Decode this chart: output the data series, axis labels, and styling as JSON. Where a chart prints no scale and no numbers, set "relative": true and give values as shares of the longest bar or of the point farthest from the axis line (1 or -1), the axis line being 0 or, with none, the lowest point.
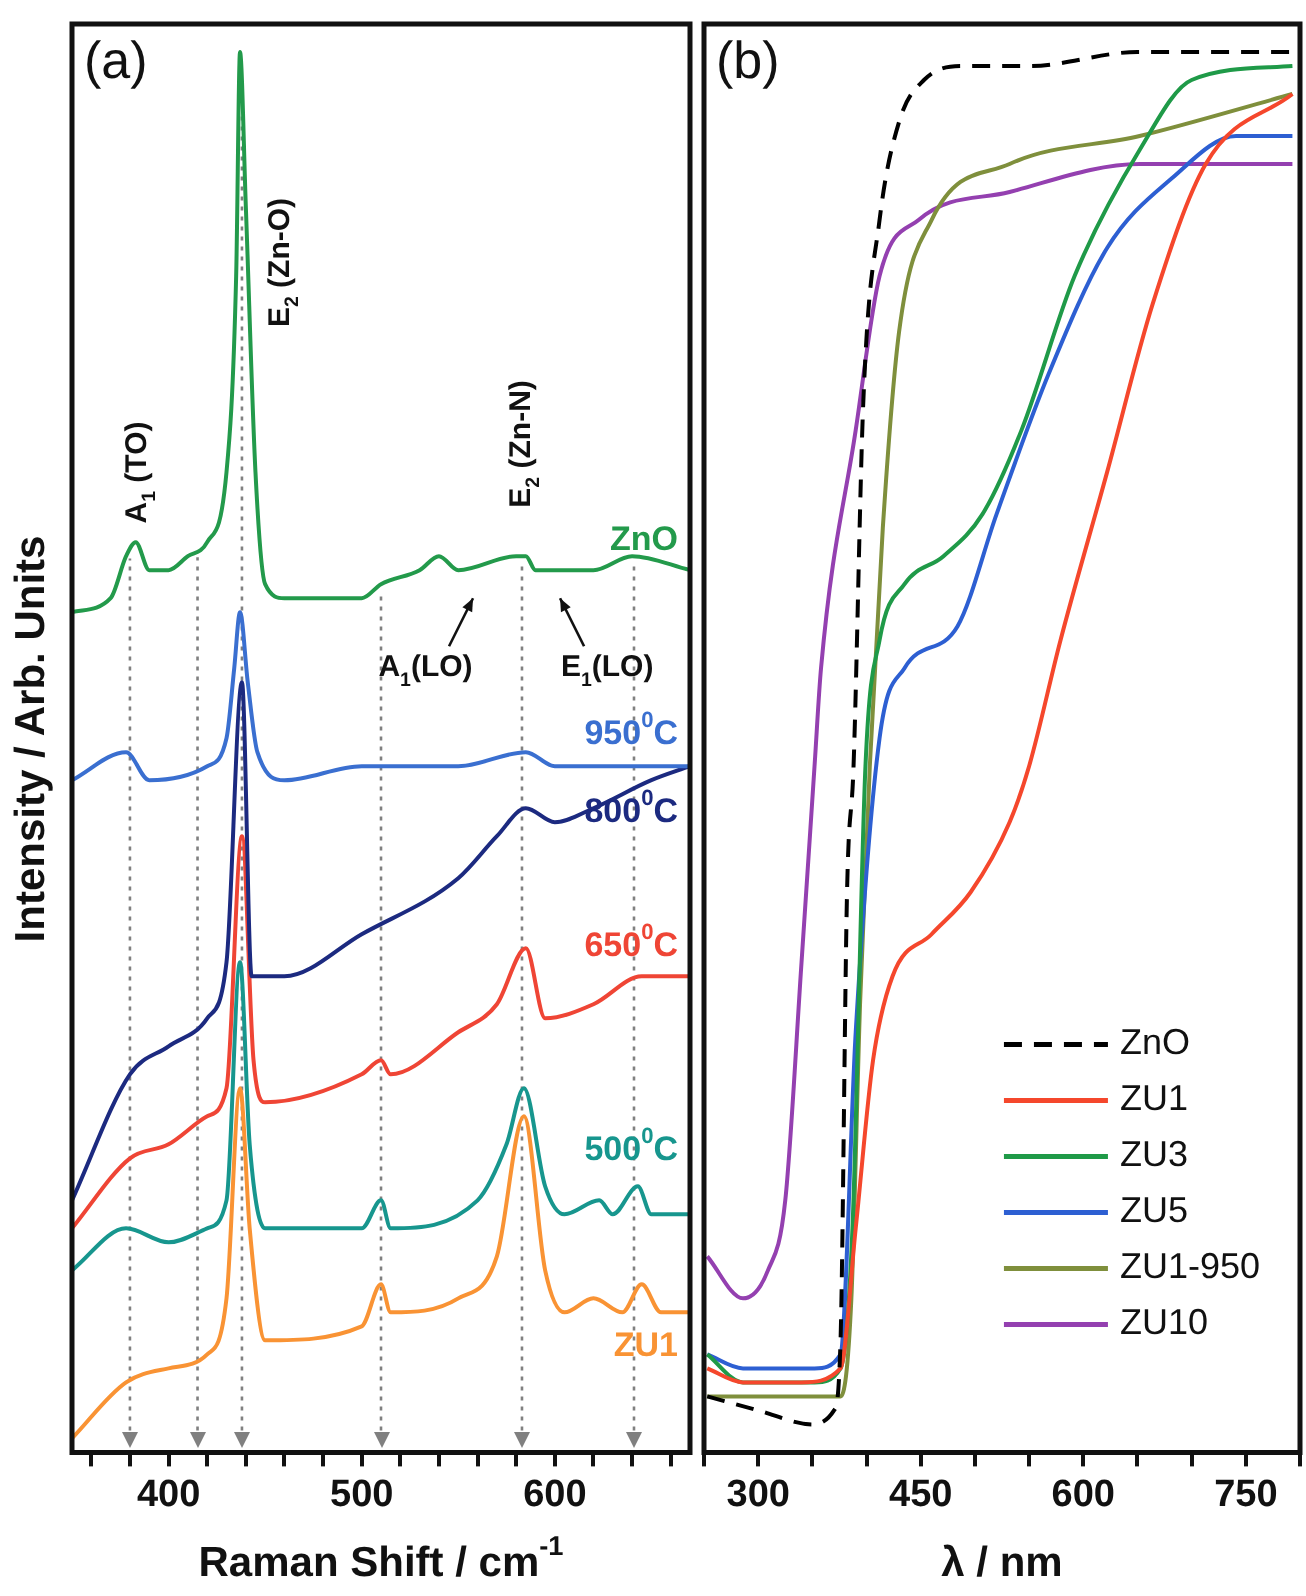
{
  "chart_data": [
    {
      "type": "line",
      "title": "(a)",
      "xlabel": "Raman Shift / cm$^{-1}$",
      "ylabel": "Intensity / Arb. Units",
      "relative": true,
      "legend": false,
      "tick_labels": "x",
      "xlim": [
        350,
        670
      ],
      "xticks": [
        {
          "value": 360,
          "label": null
        },
        {
          "value": 380,
          "label": null
        },
        400,
        {
          "value": 420,
          "label": null
        },
        {
          "value": 440,
          "label": null
        },
        {
          "value": 460,
          "label": null
        },
        {
          "value": 480,
          "label": null
        },
        500,
        {
          "value": 520,
          "label": null
        },
        {
          "value": 540,
          "label": null
        },
        {
          "value": 560,
          "label": null
        },
        {
          "value": 580,
          "label": null
        },
        600,
        {
          "value": 620,
          "label": null
        },
        {
          "value": 640,
          "label": null
        },
        {
          "value": 660,
          "label": null
        }
      ],
      "ref_lines": [
        {
          "axis": "x",
          "value": 380,
          "color": "#808080",
          "line_style": "dotted"
        },
        {
          "axis": "x",
          "value": 415,
          "color": "#808080",
          "line_style": "dotted"
        },
        {
          "axis": "x",
          "value": 438,
          "color": "#808080",
          "line_style": "dotted"
        },
        {
          "axis": "x",
          "value": 510,
          "color": "#808080",
          "line_style": "dotted"
        },
        {
          "axis": "x",
          "value": 583,
          "color": "#808080",
          "line_style": "dotted"
        },
        {
          "axis": "x",
          "value": 641,
          "color": "#808080",
          "line_style": "dotted"
        }
      ],
      "annotations": [
        "A$_{1}$ (TO)",
        "E$_{2}$ (Zn-O)",
        "E$_{2}$ (Zn-N)",
        "A$_{1}$(LO)",
        "E$_{1}$(LO)"
      ],
      "series": [
        {
          "name": "ZnO",
          "color": "#239a4b",
          "x": [
            350,
            370,
            378,
            383,
            390,
            400,
            410,
            420,
            430,
            435,
            437,
            440,
            445,
            450,
            460,
            500,
            510,
            530,
            540,
            550,
            580,
            585,
            590,
            620,
            640,
            670
          ],
          "values": [
            0.6,
            0.61,
            0.64,
            0.65,
            0.63,
            0.63,
            0.64,
            0.65,
            0.7,
            0.84,
            1,
            0.89,
            0.7,
            0.62,
            0.61,
            0.61,
            0.62,
            0.63,
            0.64,
            0.63,
            0.64,
            0.64,
            0.63,
            0.63,
            0.64,
            0.63
          ]
        },
        {
          "name": "950$^{0}$C",
          "color": "#3a6fd0",
          "x": [
            350,
            378,
            390,
            420,
            430,
            434,
            437,
            441,
            446,
            460,
            500,
            550,
            585,
            600,
            640,
            670
          ],
          "values": [
            0.48,
            0.5,
            0.48,
            0.49,
            0.51,
            0.56,
            0.6,
            0.55,
            0.5,
            0.48,
            0.49,
            0.49,
            0.5,
            0.49,
            0.49,
            0.49
          ]
        },
        {
          "name": "800$^{0}$C",
          "color": "#1c2a80",
          "x": [
            350,
            380,
            400,
            420,
            430,
            438,
            443,
            447,
            460,
            500,
            550,
            570,
            585,
            600,
            620,
            650,
            670
          ],
          "values": [
            0.18,
            0.27,
            0.29,
            0.31,
            0.35,
            0.55,
            0.34,
            0.34,
            0.34,
            0.37,
            0.41,
            0.44,
            0.46,
            0.45,
            0.46,
            0.48,
            0.49
          ]
        },
        {
          "name": "650$^{0}$C",
          "color": "#ef4535",
          "x": [
            350,
            380,
            400,
            420,
            430,
            438,
            444,
            450,
            500,
            510,
            515,
            550,
            570,
            585,
            595,
            620,
            645,
            670
          ],
          "values": [
            0.16,
            0.21,
            0.22,
            0.24,
            0.26,
            0.44,
            0.28,
            0.25,
            0.27,
            0.28,
            0.27,
            0.3,
            0.32,
            0.36,
            0.31,
            0.32,
            0.34,
            0.34
          ]
        },
        {
          "name": "500$^{0}$C",
          "color": "#17968e",
          "x": [
            350,
            378,
            400,
            420,
            430,
            437,
            442,
            450,
            500,
            510,
            515,
            560,
            575,
            584,
            595,
            605,
            623,
            630,
            643,
            650,
            670
          ],
          "values": [
            0.13,
            0.16,
            0.15,
            0.16,
            0.18,
            0.35,
            0.22,
            0.16,
            0.16,
            0.18,
            0.16,
            0.18,
            0.22,
            0.26,
            0.19,
            0.17,
            0.18,
            0.17,
            0.19,
            0.17,
            0.17
          ]
        },
        {
          "name": "ZU1",
          "color": "#f99334",
          "x": [
            350,
            378,
            400,
            420,
            430,
            437,
            442,
            450,
            500,
            510,
            515,
            550,
            570,
            584,
            595,
            605,
            620,
            635,
            645,
            655,
            670
          ],
          "values": [
            0.01,
            0.05,
            0.06,
            0.07,
            0.11,
            0.26,
            0.16,
            0.08,
            0.09,
            0.12,
            0.1,
            0.11,
            0.14,
            0.24,
            0.13,
            0.1,
            0.11,
            0.1,
            0.12,
            0.1,
            0.1
          ]
        }
      ]
    },
    {
      "type": "line",
      "title": "(b)",
      "xlabel": "λ / nm",
      "relative": true,
      "legend": "bottom right",
      "tick_labels": "x",
      "xlim": [
        250,
        800
      ],
      "xticks": [
        {
          "value": 250,
          "label": null
        },
        300,
        {
          "value": 350,
          "label": null
        },
        {
          "value": 400,
          "label": null
        },
        450,
        {
          "value": 500,
          "label": null
        },
        {
          "value": 550,
          "label": null
        },
        600,
        {
          "value": 650,
          "label": null
        },
        {
          "value": 700,
          "label": null
        },
        750,
        {
          "value": 800,
          "label": null
        }
      ],
      "series": [
        {
          "name": "ZnO",
          "color": "#000000",
          "line_style": "dashed",
          "x": [
            253,
            300,
            350,
            370,
            376,
            382,
            388,
            397,
            412,
            430,
            453,
            489,
            550,
            650,
            790
          ],
          "values": [
            0.04,
            0.03,
            0.02,
            0.03,
            0.08,
            0.4,
            0.49,
            0.75,
            0.88,
            0.95,
            0.98,
            0.99,
            0.99,
            1,
            1
          ]
        },
        {
          "name": "ZU1",
          "color": "#f5472c",
          "x": [
            253,
            286,
            340,
            376,
            390,
            406,
            424,
            460,
            496,
            532,
            550,
            579,
            622,
            664,
            713,
            793
          ],
          "values": [
            0.06,
            0.05,
            0.05,
            0.06,
            0.16,
            0.28,
            0.34,
            0.37,
            0.4,
            0.45,
            0.49,
            0.58,
            0.7,
            0.82,
            0.92,
            0.97
          ]
        },
        {
          "name": "ZU3",
          "color": "#1f9a48",
          "x": [
            253,
            286,
            352,
            376,
            387,
            399,
            412,
            435,
            471,
            507,
            543,
            592,
            652,
            700,
            793
          ],
          "values": [
            0.07,
            0.05,
            0.05,
            0.06,
            0.16,
            0.49,
            0.58,
            0.62,
            0.64,
            0.67,
            0.73,
            0.84,
            0.93,
            0.98,
            0.99
          ]
        },
        {
          "name": "ZU5",
          "color": "#2d5fd2",
          "x": [
            253,
            286,
            352,
            376,
            390,
            412,
            435,
            484,
            520,
            568,
            622,
            682,
            741,
            793
          ],
          "values": [
            0.07,
            0.06,
            0.06,
            0.07,
            0.3,
            0.51,
            0.56,
            0.59,
            0.67,
            0.77,
            0.86,
            0.91,
            0.94,
            0.94
          ]
        },
        {
          "name": "ZU1-950",
          "color": "#7f8f3c",
          "x": [
            253,
            286,
            352,
            376,
            386,
            394,
            403,
            415,
            430,
            460,
            532,
            652,
            793
          ],
          "values": [
            0.04,
            0.04,
            0.04,
            0.04,
            0.11,
            0.32,
            0.49,
            0.66,
            0.8,
            0.88,
            0.92,
            0.94,
            0.97
          ]
        },
        {
          "name": "ZU10",
          "color": "#9440b0",
          "x": [
            253,
            286,
            309,
            325,
            340,
            352,
            358,
            390,
            412,
            448,
            532,
            652,
            793
          ],
          "values": [
            0.14,
            0.11,
            0.13,
            0.18,
            0.35,
            0.49,
            0.56,
            0.73,
            0.84,
            0.88,
            0.9,
            0.92,
            0.92
          ]
        }
      ]
    }
  ]
}
